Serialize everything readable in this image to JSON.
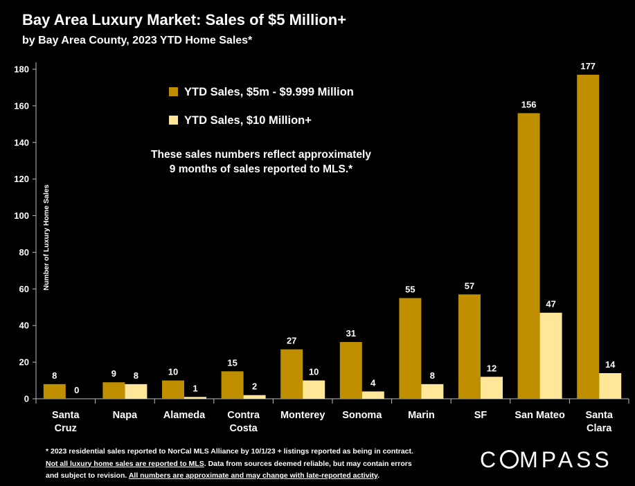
{
  "title": "Bay Area Luxury Market: Sales of $5 Million+",
  "subtitle": "by Bay Area County, 2023 YTD Home Sales*",
  "annotation_lines": [
    "These sales numbers reflect approximately",
    "9 months of sales reported to MLS.*"
  ],
  "footnote": {
    "line1": "* 2023 residential sales reported to NorCal MLS Alliance by 10/1/23 + listings reported as being in contract.",
    "line2_underlined": "Not all luxury home sales are reported to MLS",
    "line2_rest": ". Data from sources deemed reliable, but may contain errors",
    "line3_start": "and subject to revision. ",
    "line3_underlined": "All numbers are approximate and may change with late-reported activity",
    "line3_end": "."
  },
  "logo_text": "COMPASS",
  "colors": {
    "series1": "#bf8f00",
    "series2": "#ffe699",
    "background": "#000000",
    "text": "#ffffff"
  },
  "chart_data": {
    "type": "bar",
    "title": "Bay Area Luxury Market: Sales of $5 Million+",
    "subtitle": "by Bay Area County, 2023 YTD Home Sales*",
    "ylabel": "Number of Luxury Home Sales",
    "xlabel": "",
    "ylim": [
      0,
      180
    ],
    "yticks": [
      0,
      20,
      40,
      60,
      80,
      100,
      120,
      140,
      160,
      180
    ],
    "categories": [
      [
        "Santa",
        "Cruz"
      ],
      [
        "Napa"
      ],
      [
        "Alameda"
      ],
      [
        "Contra",
        "Costa"
      ],
      [
        "Monterey"
      ],
      [
        "Sonoma"
      ],
      [
        "Marin"
      ],
      [
        "SF"
      ],
      [
        "San Mateo"
      ],
      [
        "Santa",
        "Clara"
      ]
    ],
    "series": [
      {
        "name": "YTD Sales, $5m - $9.999 Million",
        "color": "#bf8f00",
        "values": [
          8,
          9,
          10,
          15,
          27,
          31,
          55,
          57,
          156,
          177
        ]
      },
      {
        "name": "YTD Sales, $10 Million+",
        "color": "#ffe699",
        "values": [
          0,
          8,
          1,
          2,
          10,
          4,
          8,
          12,
          47,
          14
        ]
      }
    ],
    "grid": false,
    "legend": "top-left inside plot"
  }
}
